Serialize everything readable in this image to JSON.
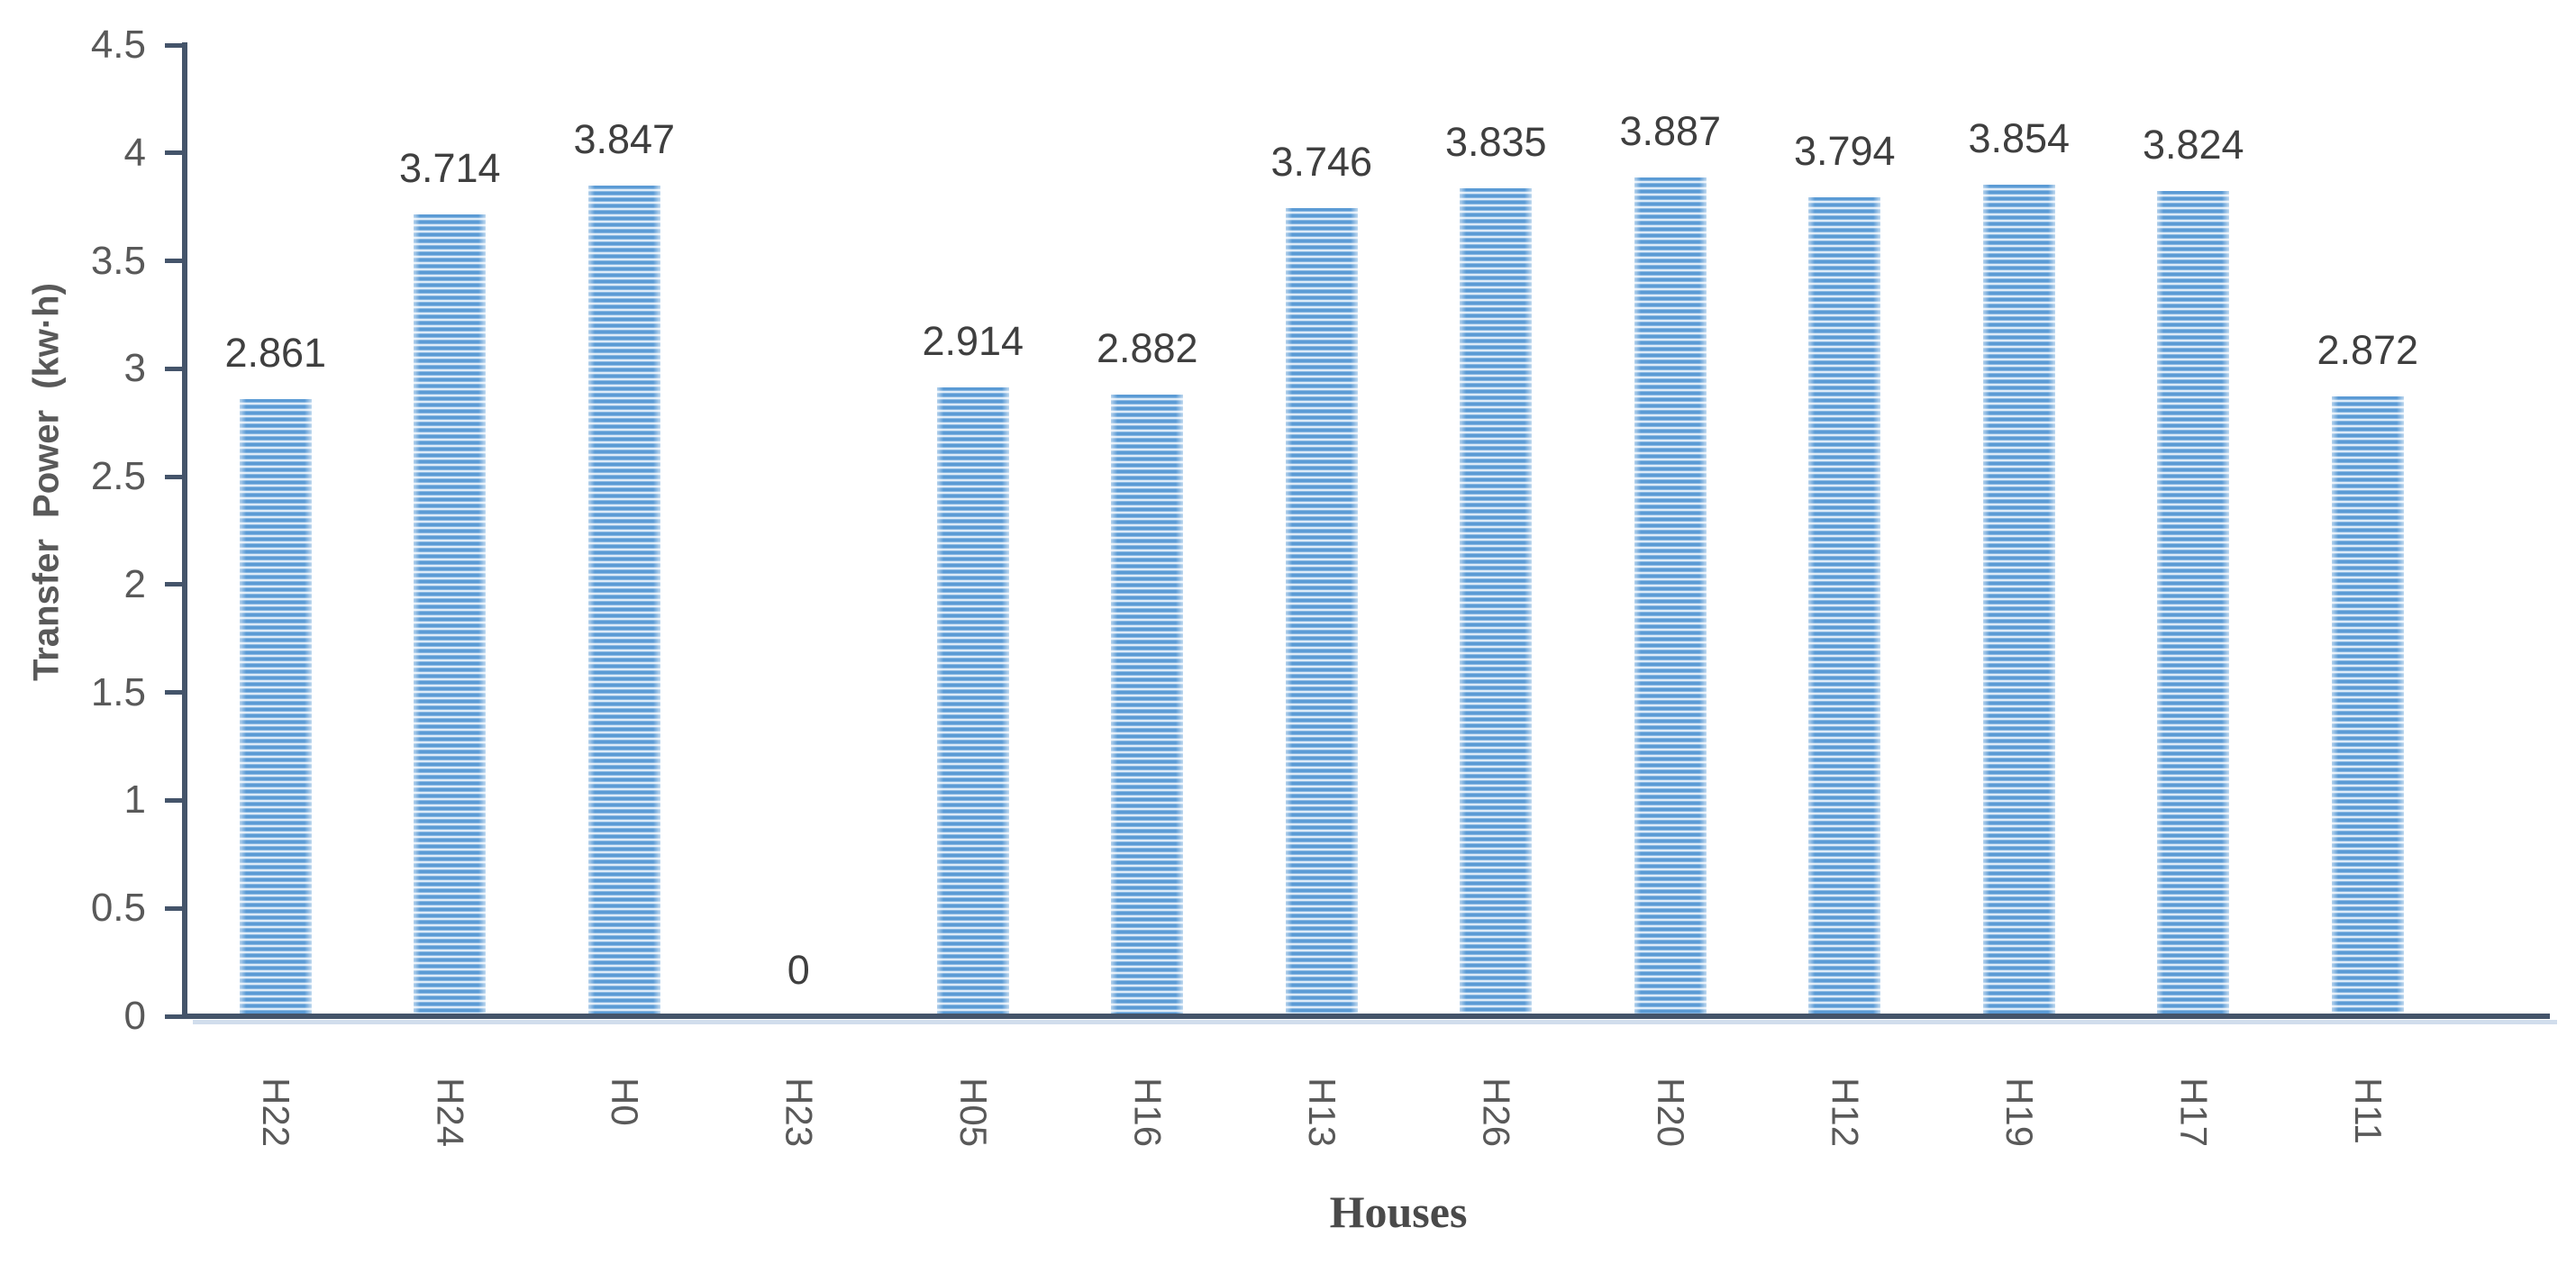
{
  "chart_data": {
    "type": "bar",
    "title": "",
    "xlabel": "Houses",
    "ylabel": "Transfer Power (kw·h)",
    "categories": [
      "H22",
      "H24",
      "H0",
      "H23",
      "H05",
      "H16",
      "H13",
      "H26",
      "H20",
      "H12",
      "H19",
      "H17",
      "H11"
    ],
    "values": [
      2.861,
      3.714,
      3.847,
      0,
      2.914,
      2.882,
      3.746,
      3.835,
      3.887,
      3.794,
      3.854,
      3.824,
      2.872
    ],
    "data_labels": [
      "2.861",
      "3.714",
      "3.847",
      "0",
      "2.914",
      "2.882",
      "3.746",
      "3.835",
      "3.887",
      "3.794",
      "3.854",
      "3.824",
      "2.872"
    ],
    "ylim": [
      0,
      4.5
    ],
    "ytick_step": 0.5,
    "ytick_labels": [
      "0",
      "0.5",
      "1",
      "1.5",
      "2",
      "2.5",
      "3",
      "3.5",
      "4",
      "4.5"
    ],
    "grid": false,
    "legend": null,
    "bar_pattern": "horizontal-stripes",
    "colors": {
      "bar_fill": "#5B9BD5",
      "bar_stripe": "#E9F2FB",
      "axis_line": "#44546A",
      "axis_shadow": "#CCD9EA",
      "tick_label": "#595959",
      "data_label": "#3F3F3F",
      "axis_title": "#595959"
    }
  }
}
